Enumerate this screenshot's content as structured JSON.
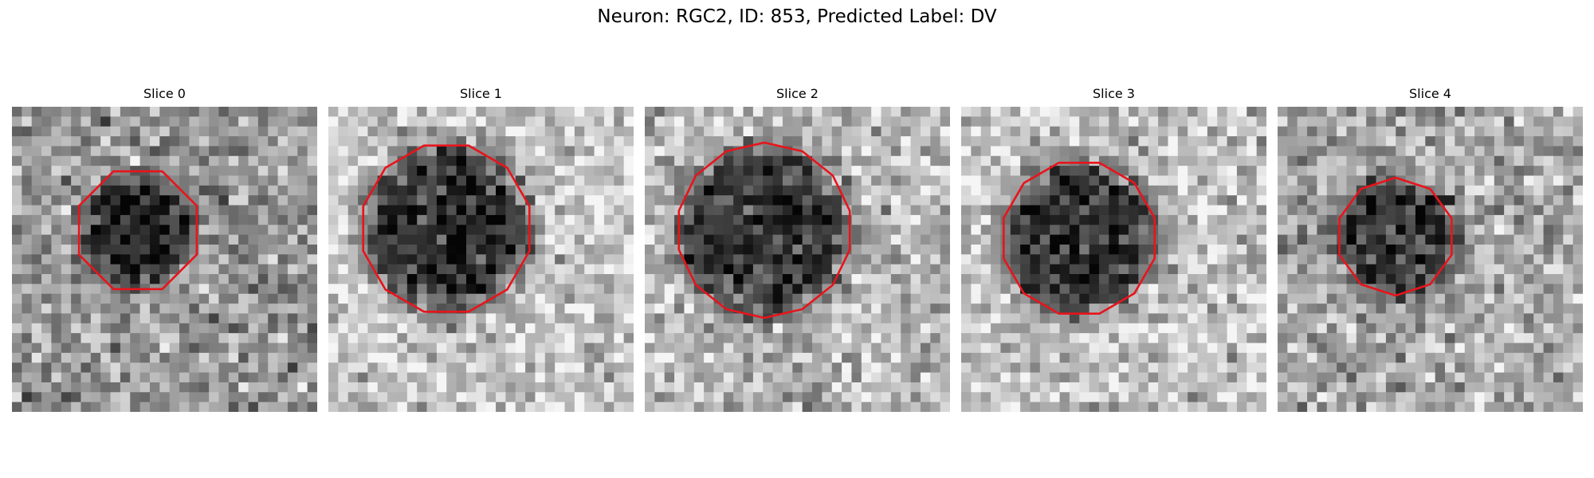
{
  "figure": {
    "title": "Neuron: RGC2, ID: 853, Predicted Label: DV",
    "colormap": "gray",
    "contour_color": "#e8141b"
  },
  "slices": [
    {
      "title": "Slice 0"
    },
    {
      "title": "Slice 1"
    },
    {
      "title": "Slice 2"
    },
    {
      "title": "Slice 3"
    },
    {
      "title": "Slice 4"
    }
  ]
}
